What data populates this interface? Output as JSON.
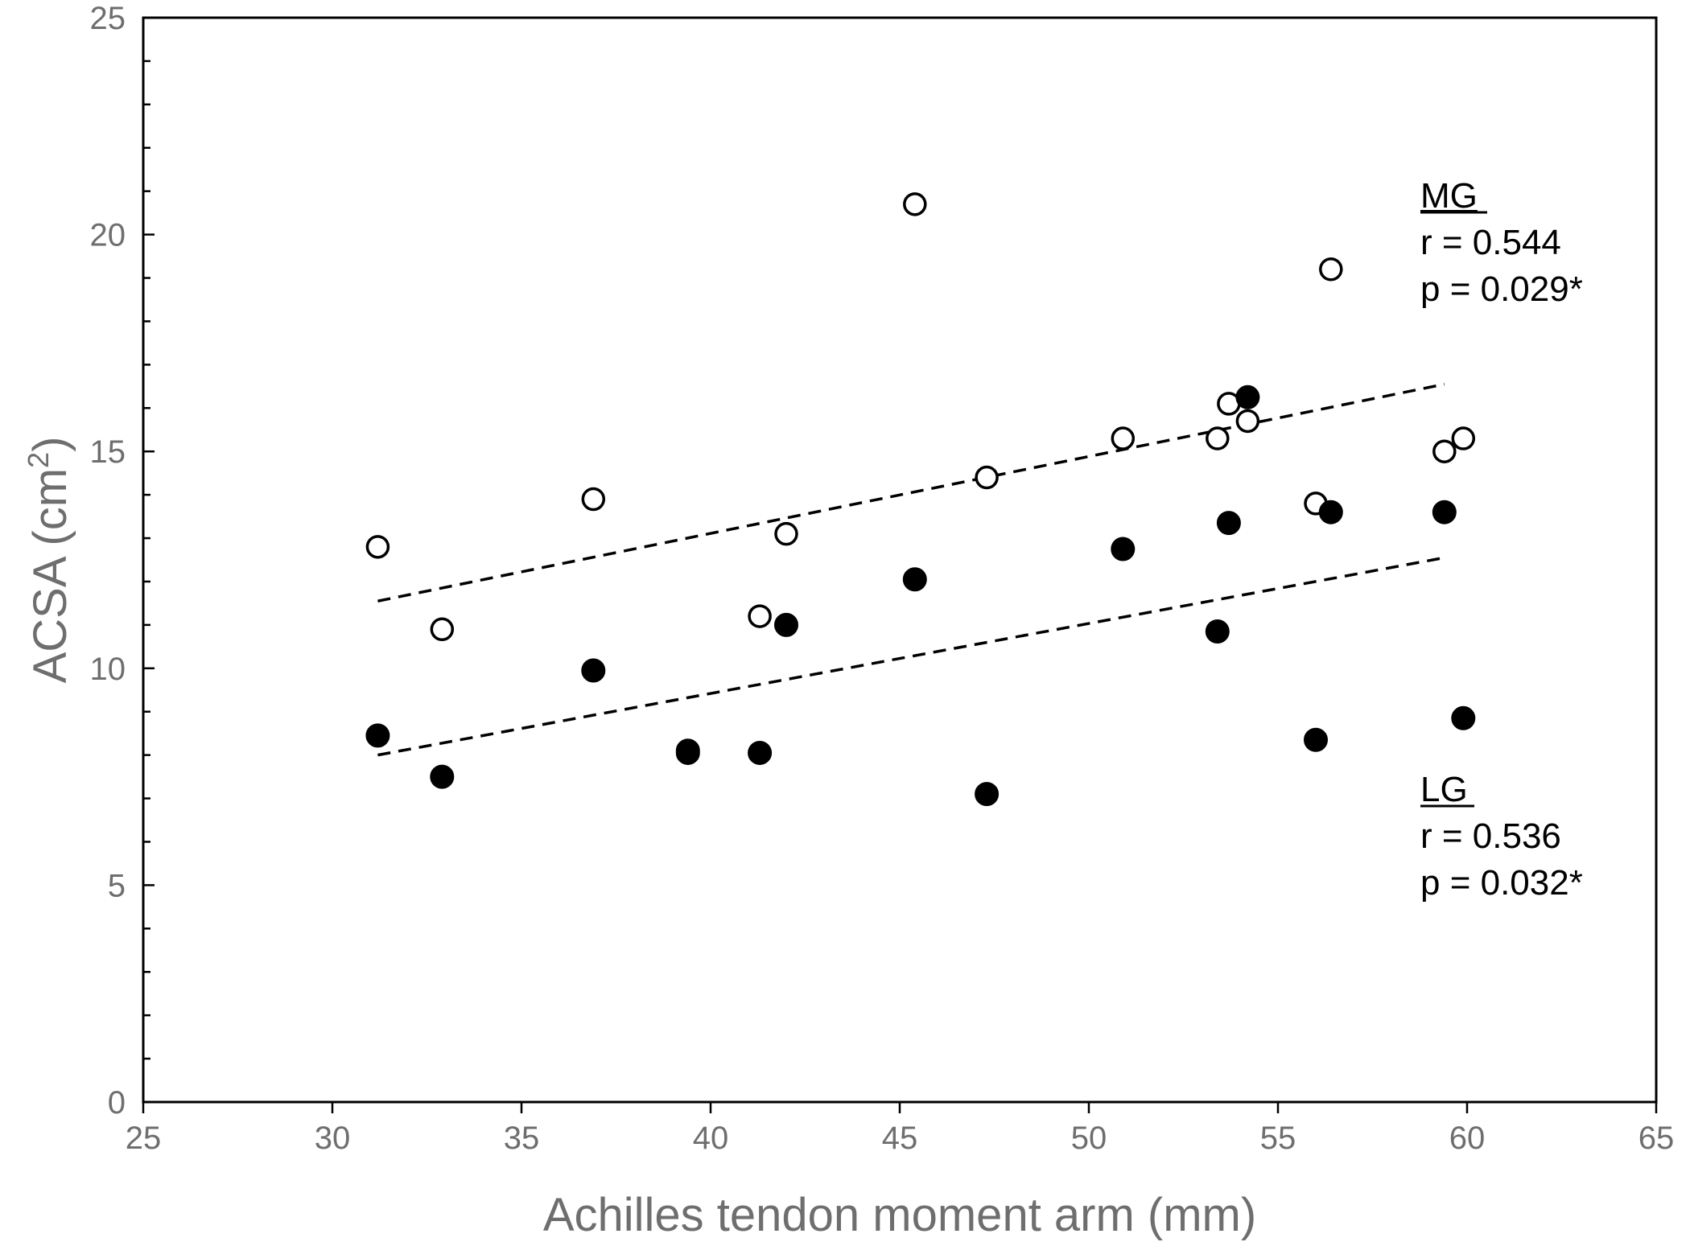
{
  "chart_data": {
    "type": "scatter",
    "xlabel": "Achilles tendon moment arm (mm)",
    "ylabel": {
      "base": "ACSA (cm",
      "sup": "2",
      "end": ")"
    },
    "xlim": [
      25,
      65
    ],
    "ylim": [
      0,
      25
    ],
    "x_ticks": [
      25,
      30,
      35,
      40,
      45,
      50,
      55,
      60,
      65
    ],
    "y_ticks": [
      0,
      5,
      10,
      15,
      20,
      25
    ],
    "y_minor_step": 1,
    "grid": false,
    "series": [
      {
        "name": "MG",
        "marker": "open-circle",
        "points": [
          [
            31.2,
            12.8
          ],
          [
            32.9,
            10.9
          ],
          [
            36.9,
            13.9
          ],
          [
            41.3,
            11.2
          ],
          [
            42.0,
            13.1
          ],
          [
            45.4,
            20.7
          ],
          [
            47.3,
            14.4
          ],
          [
            50.9,
            15.3
          ],
          [
            53.4,
            15.3
          ],
          [
            53.7,
            16.1
          ],
          [
            54.2,
            15.7
          ],
          [
            56.0,
            13.8
          ],
          [
            56.4,
            19.2
          ],
          [
            59.4,
            15.0
          ],
          [
            59.9,
            15.3
          ]
        ],
        "trend": {
          "x": [
            31.2,
            59.4
          ],
          "y": [
            11.55,
            16.55
          ]
        },
        "annotation": {
          "label": "MG",
          "r": "r = 0.544",
          "p": "p = 0.029*"
        }
      },
      {
        "name": "LG",
        "marker": "filled-circle",
        "points": [
          [
            31.2,
            8.45
          ],
          [
            32.9,
            7.5
          ],
          [
            36.9,
            9.95
          ],
          [
            39.4,
            8.05
          ],
          [
            39.4,
            8.1
          ],
          [
            41.3,
            8.05
          ],
          [
            42.0,
            11.0
          ],
          [
            45.4,
            12.05
          ],
          [
            47.3,
            7.1
          ],
          [
            50.9,
            12.75
          ],
          [
            53.4,
            10.85
          ],
          [
            53.7,
            13.35
          ],
          [
            54.2,
            16.25
          ],
          [
            56.0,
            8.35
          ],
          [
            56.4,
            13.6
          ],
          [
            59.4,
            13.6
          ],
          [
            59.9,
            8.85
          ]
        ],
        "trend": {
          "x": [
            31.2,
            59.4
          ],
          "y": [
            8.0,
            12.55
          ]
        },
        "annotation": {
          "label": "LG",
          "r": "r = 0.536",
          "p": "p = 0.032*"
        }
      }
    ]
  }
}
